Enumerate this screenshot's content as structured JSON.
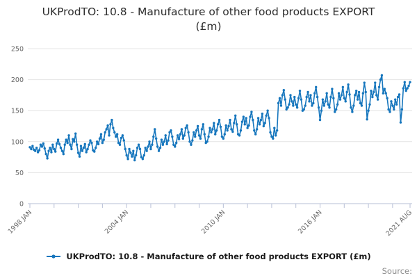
{
  "title": "UKProdTO: 10.8 - Manufacture of other food products EXPORT (£m)",
  "legend": {
    "label": "UKProdTO: 10.8 - Manufacture of other food products EXPORT (£m)",
    "marker_icon": "line-with-dot-icon"
  },
  "source_label": "Source:",
  "colors": {
    "series": "#1676bd",
    "grid": "#e4e4e4",
    "axis": "#b7bfd6",
    "tick_text": "#666666",
    "title_text": "#2e2e2e",
    "legend_text": "#1a1a1a",
    "source_text": "#8b8b8b"
  },
  "chart_data": {
    "type": "line",
    "title": "UKProdTO: 10.8 - Manufacture of other food products EXPORT (£m)",
    "xlabel": "",
    "ylabel": "",
    "unit": "£m",
    "x_start": "1998 JAN",
    "x_end": "2021 AUG",
    "frequency": "monthly",
    "ylim": [
      0,
      250
    ],
    "y_ticks": [
      0,
      50,
      100,
      150,
      200,
      250
    ],
    "x_tick_labels": [
      "1998 JAN",
      "2004 JAN",
      "2010 JAN",
      "2016 JAN",
      "2021 AUG"
    ],
    "x_tick_label_indices": [
      0,
      72,
      144,
      216,
      283
    ],
    "minor_tick_step_months": 18,
    "grid": true,
    "marker": "circle",
    "legend_position": "bottom",
    "series": [
      {
        "name": "UKProdTO: 10.8 - Manufacture of other food products EXPORT (£m)",
        "values": [
          91,
          88,
          93,
          87,
          85,
          90,
          83,
          86,
          95,
          92,
          97,
          89,
          80,
          73,
          85,
          90,
          83,
          95,
          88,
          84,
          97,
          103,
          96,
          90,
          85,
          80,
          95,
          103,
          98,
          110,
          95,
          88,
          104,
          100,
          113,
          95,
          82,
          76,
          93,
          85,
          90,
          96,
          83,
          88,
          95,
          102,
          98,
          86,
          84,
          90,
          100,
          96,
          105,
          112,
          98,
          103,
          115,
          120,
          126,
          110,
          128,
          135,
          122,
          115,
          108,
          112,
          98,
          95,
          106,
          110,
          102,
          88,
          78,
          72,
          88,
          82,
          76,
          85,
          70,
          78,
          90,
          95,
          88,
          75,
          72,
          78,
          90,
          85,
          92,
          100,
          88,
          95,
          108,
          120,
          105,
          92,
          85,
          90,
          103,
          95,
          100,
          110,
          96,
          102,
          115,
          118,
          108,
          95,
          92,
          98,
          110,
          104,
          112,
          120,
          105,
          110,
          122,
          126,
          115,
          100,
          95,
          102,
          115,
          108,
          118,
          125,
          110,
          105,
          120,
          128,
          112,
          98,
          100,
          108,
          122,
          115,
          120,
          130,
          112,
          118,
          128,
          135,
          124,
          108,
          105,
          112,
          126,
          118,
          125,
          135,
          120,
          116,
          130,
          142,
          128,
          112,
          110,
          118,
          132,
          140,
          128,
          138,
          122,
          126,
          140,
          148,
          135,
          118,
          112,
          120,
          138,
          128,
          135,
          145,
          125,
          130,
          142,
          150,
          138,
          115,
          108,
          105,
          122,
          110,
          118,
          162,
          170,
          158,
          175,
          183,
          168,
          152,
          155,
          160,
          175,
          165,
          158,
          172,
          160,
          155,
          170,
          182,
          168,
          150,
          152,
          158,
          172,
          180,
          165,
          175,
          158,
          162,
          178,
          188,
          172,
          155,
          135,
          150,
          168,
          158,
          165,
          178,
          160,
          155,
          172,
          185,
          170,
          148,
          152,
          160,
          178,
          168,
          175,
          188,
          170,
          165,
          180,
          192,
          176,
          155,
          148,
          158,
          175,
          182,
          168,
          180,
          162,
          158,
          178,
          195,
          180,
          136,
          150,
          160,
          182,
          172,
          180,
          195,
          175,
          168,
          188,
          200,
          207,
          178,
          185,
          178,
          170,
          152,
          148,
          165,
          158,
          152,
          168,
          160,
          172,
          176,
          131,
          152,
          186,
          196,
          182,
          186,
          190,
          196
        ]
      }
    ]
  }
}
